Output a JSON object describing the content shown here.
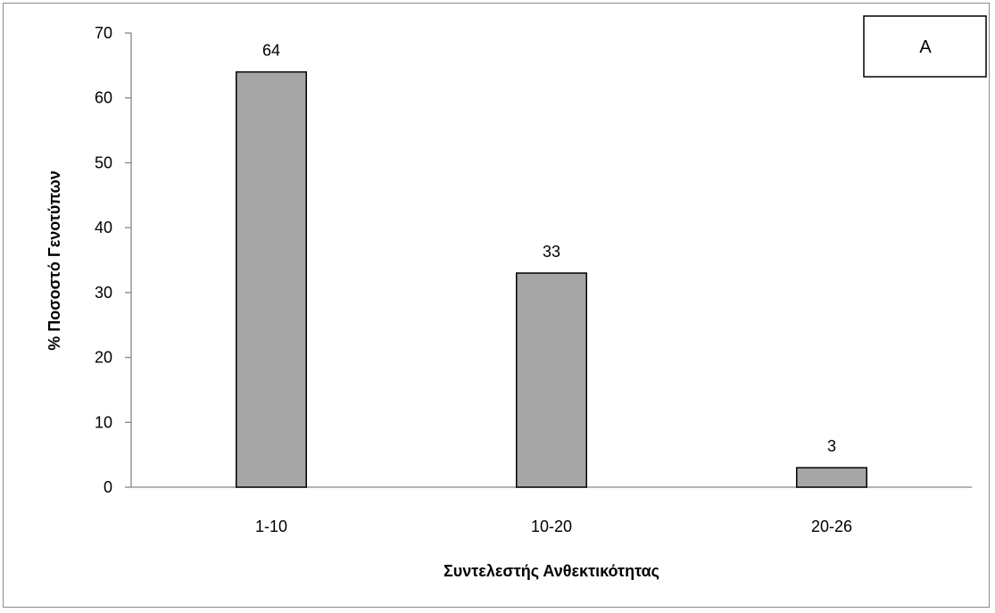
{
  "chart_data": {
    "type": "bar",
    "categories": [
      "1-10",
      "10-20",
      "20-26"
    ],
    "values": [
      64,
      33,
      3
    ],
    "data_labels": [
      "64",
      "33",
      "3"
    ],
    "title": "",
    "xlabel": "Συντελεστής Ανθεκτικότητας",
    "ylabel": "% Ποσοστό Γενοτύπων",
    "ylim": [
      0,
      70
    ],
    "yticks": [
      0,
      10,
      20,
      30,
      40,
      50,
      60,
      70
    ],
    "ytick_labels": [
      "0",
      "10",
      "20",
      "30",
      "40",
      "50",
      "60",
      "70"
    ],
    "grid": false,
    "legend": "none",
    "panel_label": "A",
    "bar_color": "#a6a6a6",
    "bar_edge_color": "#000000"
  }
}
